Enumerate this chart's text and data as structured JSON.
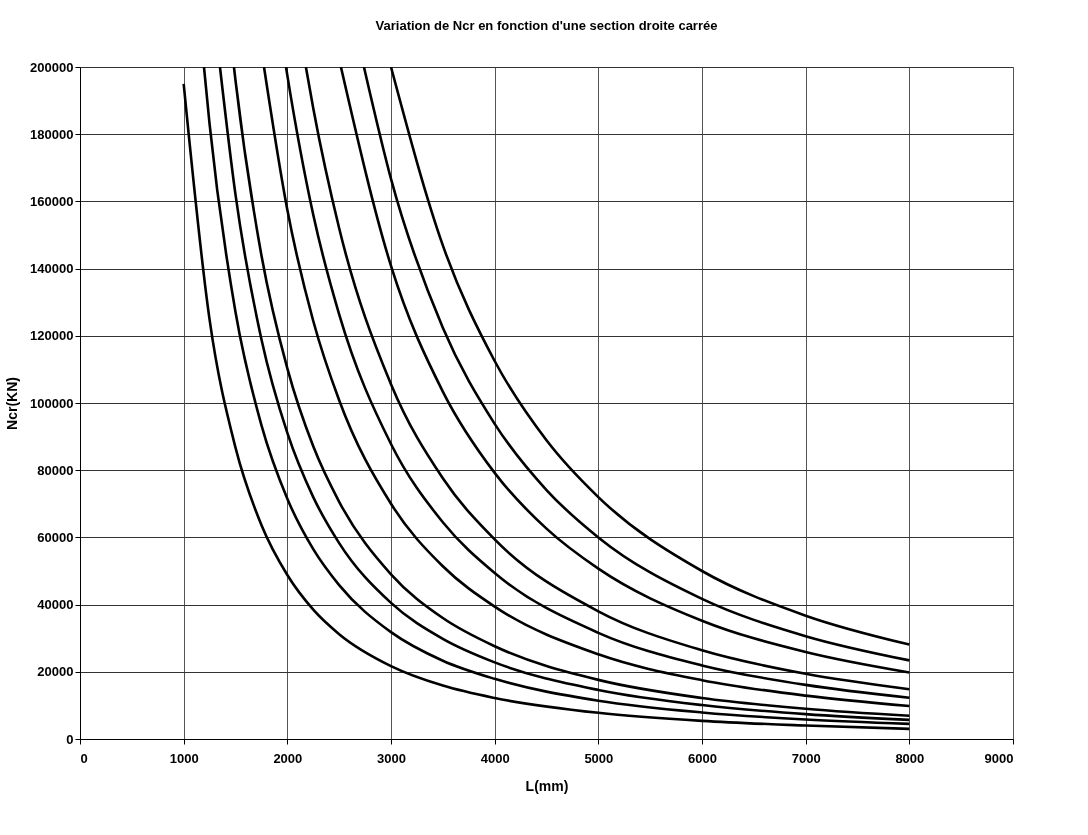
{
  "chart_data": {
    "type": "line",
    "title": "Variation de Ncr en fonction d'une section droite carrée",
    "xlabel": "L(mm)",
    "ylabel": "Ncr(KN)",
    "xlim": [
      0,
      9000
    ],
    "xticks": [
      0,
      1000,
      2000,
      3000,
      4000,
      5000,
      6000,
      7000,
      8000,
      9000
    ],
    "ylim": [
      0,
      200000
    ],
    "yticks": [
      0,
      20000,
      40000,
      60000,
      80000,
      100000,
      120000,
      140000,
      160000,
      180000,
      200000
    ],
    "grid": true,
    "legend": false,
    "marker": "none",
    "line_style": "solid",
    "series": [
      {
        "color": "#000000",
        "x": [
          1000,
          1250,
          1500,
          1750,
          2000,
          2250,
          2500,
          3000,
          3500,
          4000,
          5000,
          6000,
          7000,
          8000
        ],
        "values": [
          195000,
          124800,
          86700,
          63700,
          48800,
          38500,
          31200,
          21700,
          15900,
          12200,
          7800,
          5400,
          4000,
          3000
        ]
      },
      {
        "color": "#000000",
        "x": [
          1196,
          1250,
          1500,
          1750,
          2000,
          2250,
          2500,
          3000,
          3500,
          4000,
          5000,
          6000,
          7000,
          8000
        ],
        "values": [
          200000,
          183000,
          127100,
          93400,
          71500,
          56500,
          45800,
          31800,
          23300,
          17900,
          11400,
          7900,
          5800,
          4500
        ]
      },
      {
        "color": "#000000",
        "x": [
          1350,
          1500,
          1750,
          2000,
          2250,
          2500,
          3000,
          3500,
          4000,
          5000,
          6000,
          7000,
          8000
        ],
        "values": [
          200000,
          162000,
          119000,
          91100,
          72000,
          58300,
          40500,
          29800,
          22800,
          14600,
          10100,
          7400,
          5700
        ]
      },
      {
        "color": "#000000",
        "x": [
          1485,
          1500,
          1750,
          2000,
          2250,
          2500,
          3000,
          3500,
          4000,
          5000,
          6000,
          7000,
          8000
        ],
        "values": [
          200000,
          196000,
          144000,
          110300,
          87100,
          70600,
          49000,
          36000,
          27600,
          17600,
          12200,
          9000,
          6900
        ]
      },
      {
        "color": "#000000",
        "x": [
          1775,
          2000,
          2250,
          2500,
          3000,
          3500,
          4000,
          5000,
          6000,
          7000,
          8000
        ],
        "values": [
          200000,
          157500,
          124400,
          100800,
          70000,
          51400,
          39400,
          25200,
          17500,
          12900,
          9800
        ]
      },
      {
        "color": "#000000",
        "x": [
          1987,
          2000,
          2250,
          2500,
          3000,
          3500,
          4000,
          5000,
          6000,
          7000,
          8000
        ],
        "values": [
          200000,
          197500,
          156000,
          126400,
          87800,
          64500,
          49400,
          31600,
          21900,
          16100,
          12300
        ]
      },
      {
        "color": "#000000",
        "x": [
          2179,
          2250,
          2500,
          3000,
          3500,
          4000,
          5000,
          6000,
          7000,
          8000
        ],
        "values": [
          200000,
          187700,
          152000,
          105600,
          77600,
          59400,
          38000,
          26400,
          19400,
          14800
        ]
      },
      {
        "color": "#000000",
        "x": [
          2517,
          3000,
          3500,
          4000,
          4500,
          5000,
          6000,
          7000,
          8000
        ],
        "values": [
          200000,
          140800,
          103400,
          79200,
          62600,
          50700,
          35200,
          25900,
          19800
        ]
      },
      {
        "color": "#000000",
        "x": [
          2739,
          3000,
          3500,
          4000,
          4500,
          5000,
          6000,
          7000,
          8000
        ],
        "values": [
          200000,
          166700,
          122400,
          93800,
          74100,
          60000,
          41700,
          30600,
          23400
        ]
      },
      {
        "color": "#000000",
        "x": [
          3000,
          3500,
          4000,
          4500,
          5000,
          6000,
          7000,
          8000
        ],
        "values": [
          200000,
          146900,
          112500,
          88900,
          72000,
          50000,
          36700,
          28100
        ]
      }
    ]
  }
}
